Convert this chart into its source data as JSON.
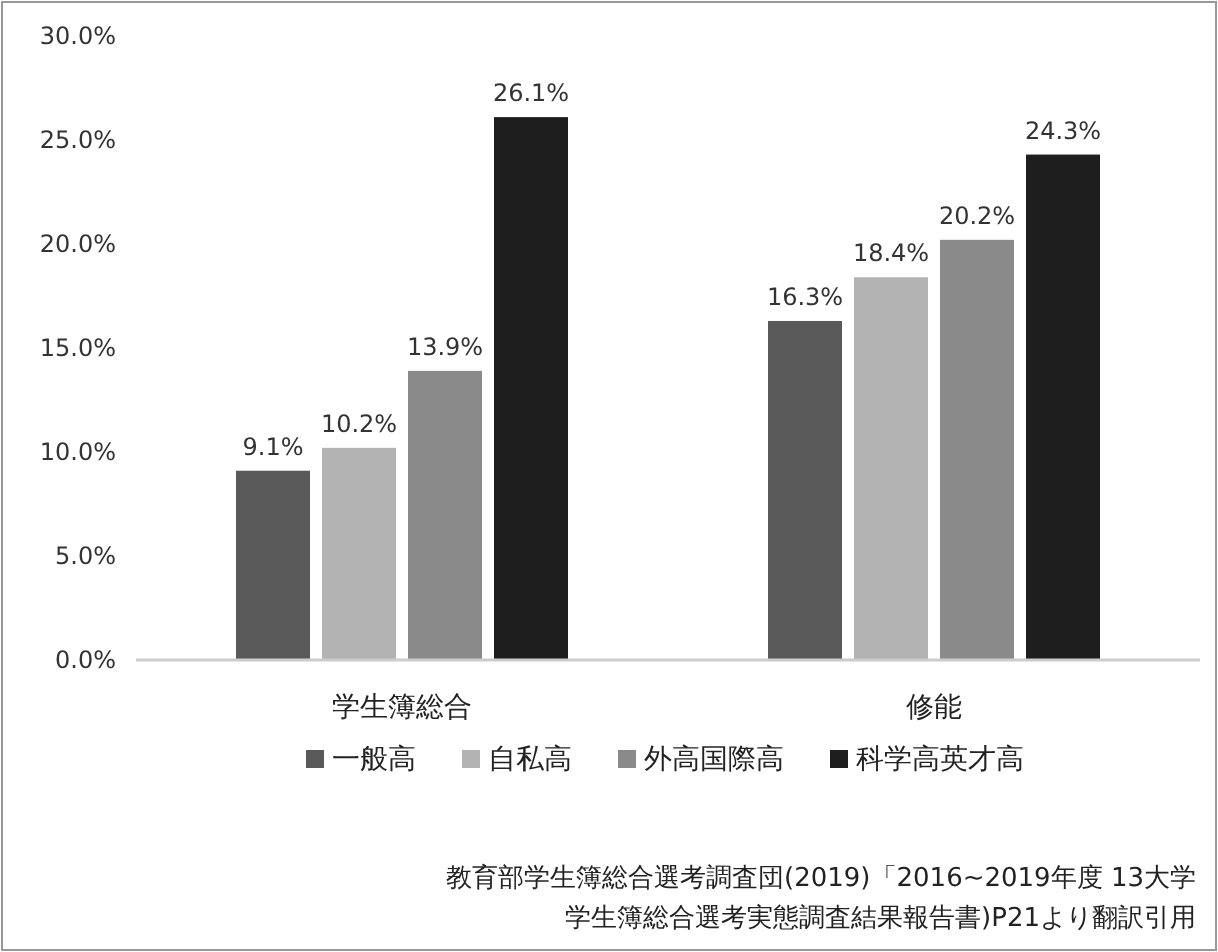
{
  "chart_data": {
    "type": "bar",
    "categories": [
      "学生簿総合",
      "修能"
    ],
    "series": [
      {
        "name": "一般高",
        "color": "#5a5a5a",
        "values": [
          9.1,
          16.3
        ],
        "value_labels": [
          "9.1%",
          "16.3%"
        ]
      },
      {
        "name": "自私高",
        "color": "#b3b3b3",
        "values": [
          10.2,
          18.4
        ],
        "value_labels": [
          "10.2%",
          "18.4%"
        ]
      },
      {
        "name": "外高国際高",
        "color": "#8a8a8a",
        "values": [
          13.9,
          20.2
        ],
        "value_labels": [
          "13.9%",
          "20.2%"
        ]
      },
      {
        "name": "科学高英才高",
        "color": "#1e1e1e",
        "values": [
          26.1,
          24.3
        ],
        "value_labels": [
          "26.1%",
          "24.3%"
        ]
      }
    ],
    "ylim": [
      0,
      30
    ],
    "yticks": [
      {
        "value": 0,
        "label": "0.0%"
      },
      {
        "value": 5,
        "label": "5.0%"
      },
      {
        "value": 10,
        "label": "10.0%"
      },
      {
        "value": 15,
        "label": "15.0%"
      },
      {
        "value": 20,
        "label": "20.0%"
      },
      {
        "value": 25,
        "label": "25.0%"
      },
      {
        "value": 30,
        "label": "30.0%"
      }
    ],
    "legend": "bottom",
    "annotations": [
      "教育部学生簿総合選考調査団(2019)「2016~2019年度 13大学",
      "学生簿総合選考実態調査結果報告書)P21より翻訳引用"
    ]
  }
}
